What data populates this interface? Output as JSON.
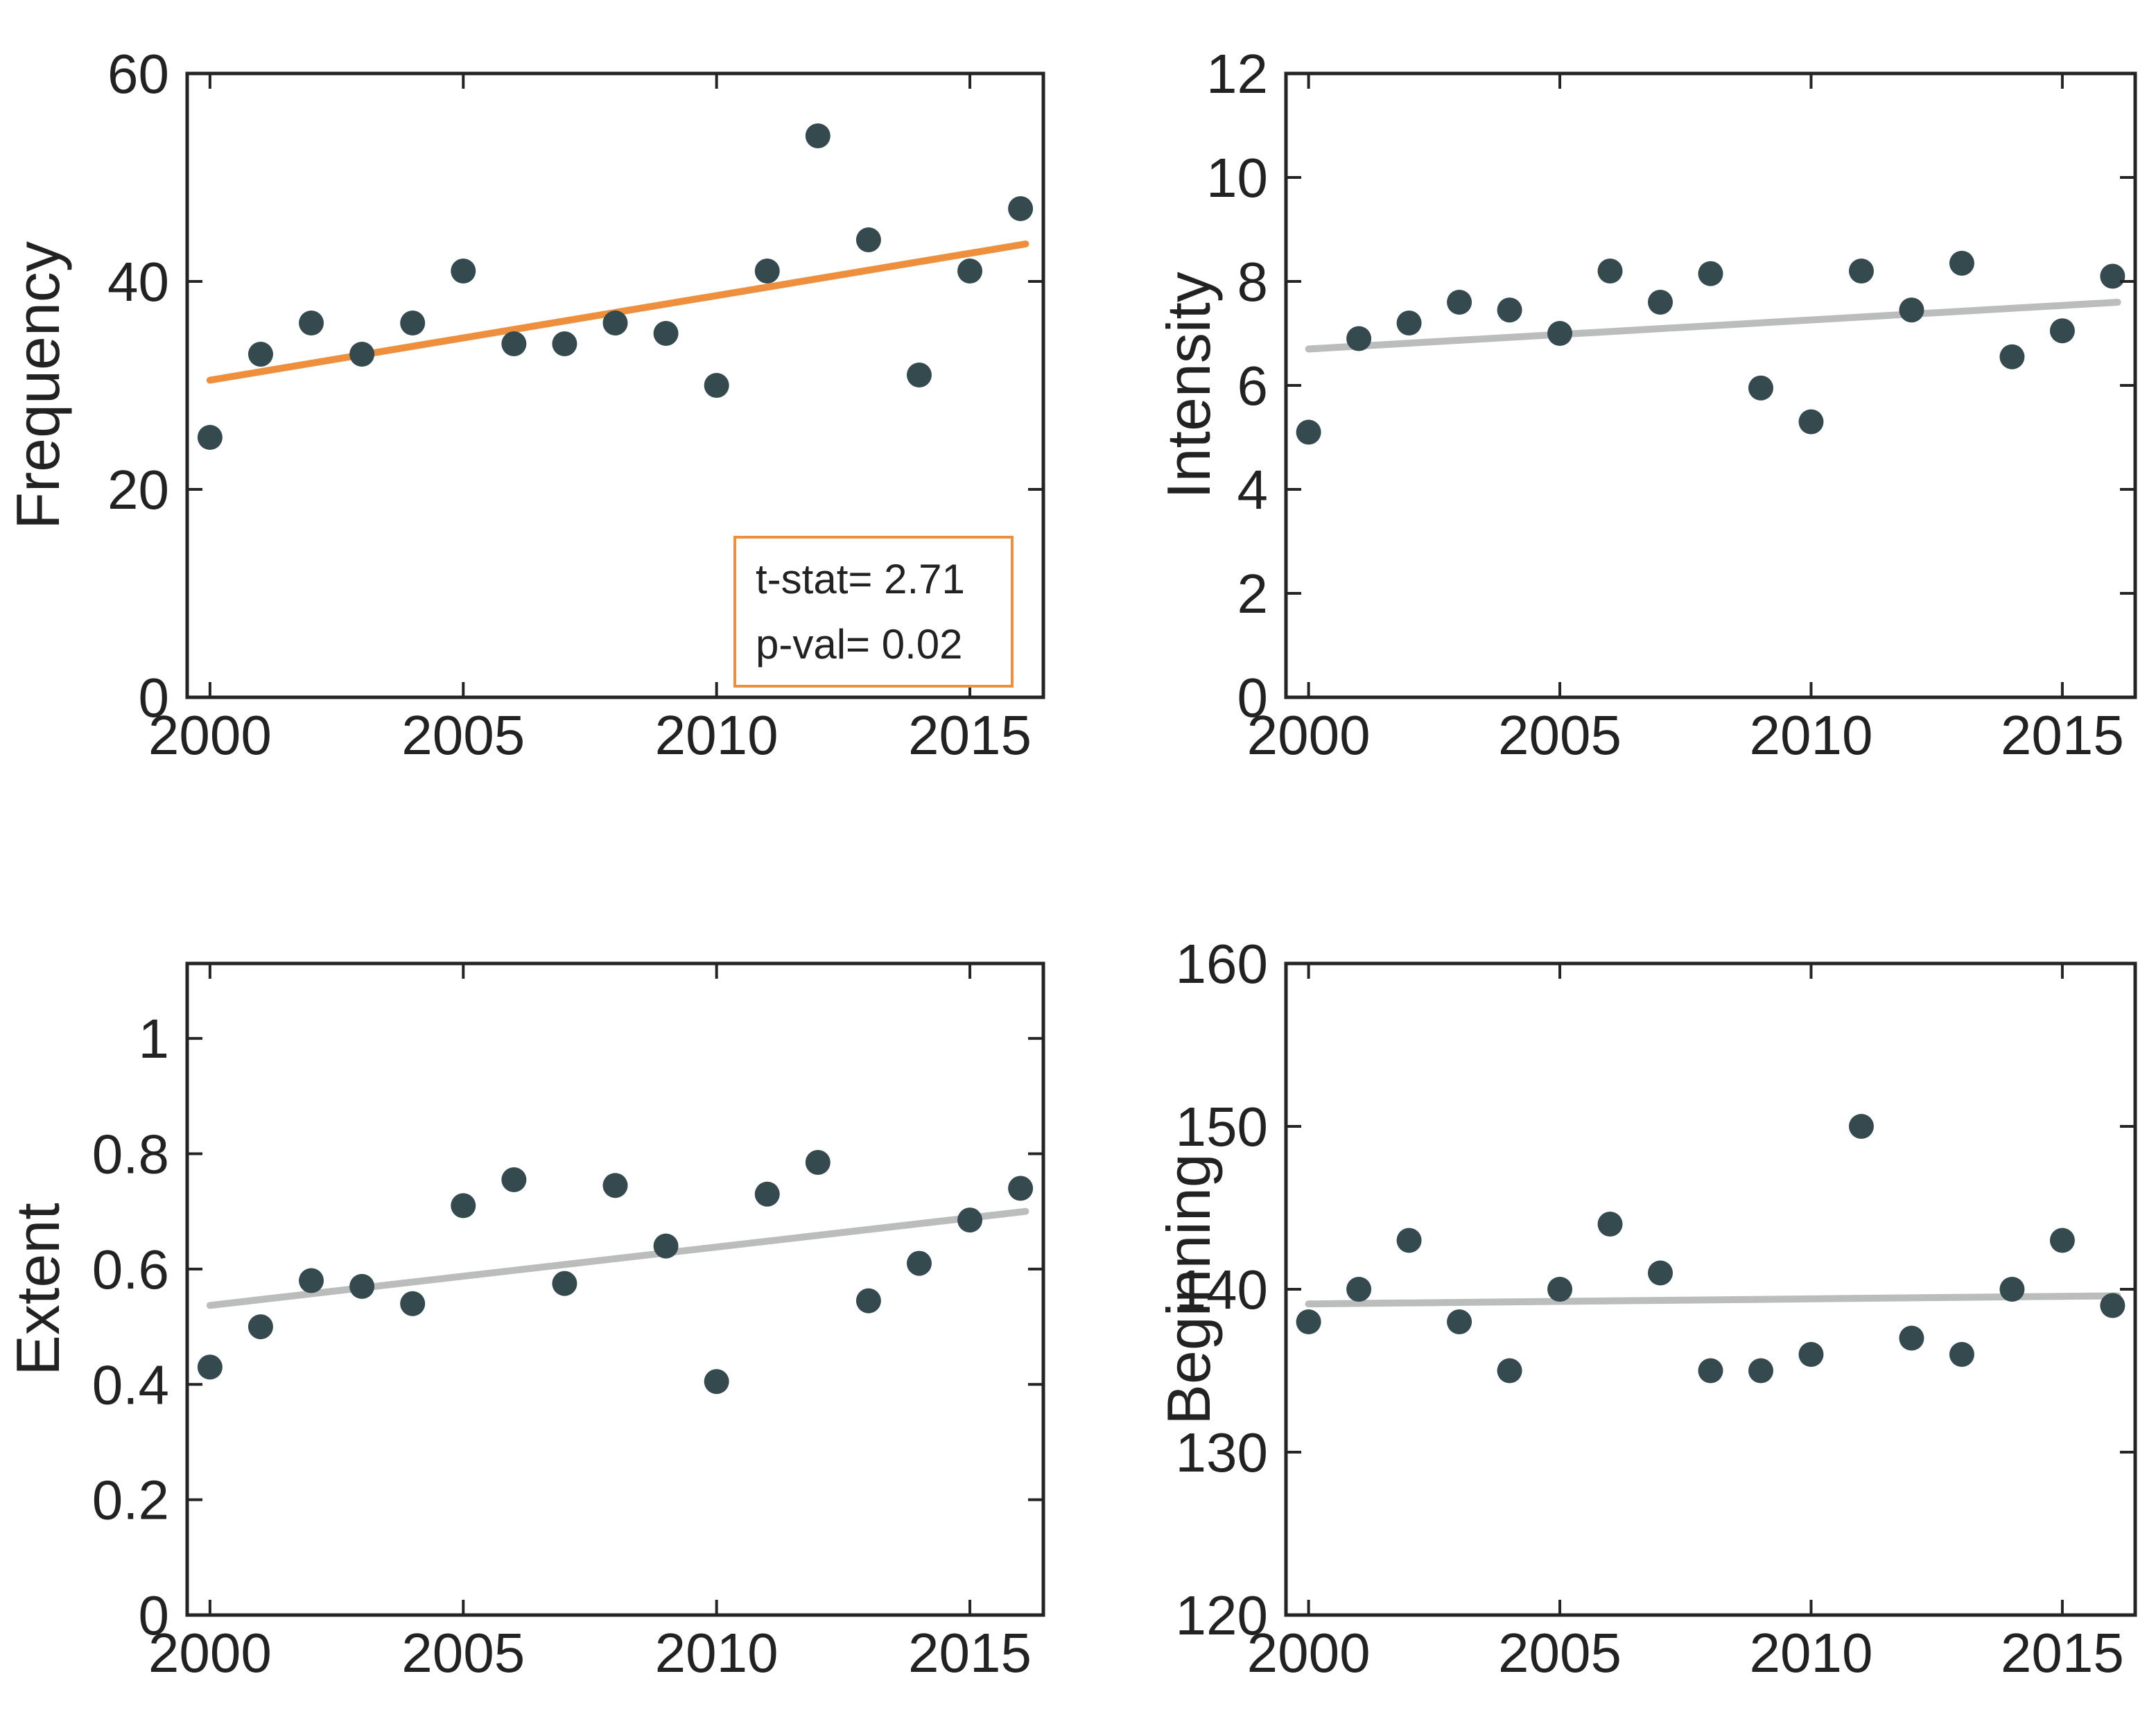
{
  "figure_title": "",
  "colors": {
    "background": "#ffffff",
    "dot": "#344a4e",
    "axis": "#242424",
    "text": "#222222",
    "trend_orange": "#ed8f3c",
    "trend_gray": "#bbbdbd"
  },
  "chart_data": [
    {
      "type": "scatter",
      "ylabel": "Frequency",
      "xlabel": "",
      "x": [
        2000,
        2001,
        2002,
        2003,
        2004,
        2005,
        2006,
        2007,
        2008,
        2009,
        2010,
        2011,
        2012,
        2013,
        2014,
        2015,
        2016
      ],
      "values": [
        25,
        33,
        36,
        33,
        36,
        41,
        34,
        34,
        36,
        35,
        30,
        41,
        54,
        44,
        31,
        41,
        47
      ],
      "xlim": [
        1999.55,
        2016.45
      ],
      "ylim": [
        0,
        60
      ],
      "xticks": [
        2000,
        2005,
        2010,
        2015
      ],
      "yticks": [
        0,
        20,
        40,
        60
      ],
      "grid": "off",
      "trend": {
        "x": [
          2000,
          2016.1
        ],
        "y": [
          30.5,
          43.6
        ],
        "color_key": "trend_orange"
      },
      "annotation": {
        "lines": [
          "t-stat= 2.71",
          "p-val= 0.02"
        ],
        "border_color_key": "trend_orange"
      }
    },
    {
      "type": "scatter",
      "ylabel": "Intensity",
      "xlabel": "",
      "x": [
        2000,
        2001,
        2002,
        2003,
        2004,
        2005,
        2006,
        2007,
        2008,
        2009,
        2010,
        2011,
        2012,
        2013,
        2014,
        2015,
        2016
      ],
      "values": [
        5.1,
        6.9,
        7.2,
        7.6,
        7.45,
        7.0,
        8.2,
        7.6,
        8.15,
        5.95,
        5.3,
        8.2,
        7.45,
        8.35,
        6.55,
        7.05,
        8.1
      ],
      "xlim": [
        1999.55,
        2016.45
      ],
      "ylim": [
        0,
        12
      ],
      "xticks": [
        2000,
        2005,
        2010,
        2015
      ],
      "yticks": [
        0,
        2,
        4,
        6,
        8,
        10,
        12
      ],
      "grid": "off",
      "trend": {
        "x": [
          2000,
          2016.1
        ],
        "y": [
          6.7,
          7.6
        ],
        "color_key": "trend_gray"
      }
    },
    {
      "type": "scatter",
      "ylabel": "Extent",
      "xlabel": "",
      "x": [
        2000,
        2001,
        2002,
        2003,
        2004,
        2005,
        2006,
        2007,
        2008,
        2009,
        2010,
        2011,
        2012,
        2013,
        2014,
        2015,
        2016
      ],
      "values": [
        0.43,
        0.5,
        0.58,
        0.57,
        0.54,
        0.71,
        0.755,
        0.575,
        0.745,
        0.64,
        0.405,
        0.73,
        0.785,
        0.545,
        0.61,
        0.685,
        0.74
      ],
      "xlim": [
        1999.55,
        2016.45
      ],
      "ylim": [
        0,
        1.13
      ],
      "xticks": [
        2000,
        2005,
        2010,
        2015
      ],
      "yticks": [
        0,
        0.2,
        0.4,
        0.6,
        0.8,
        1
      ],
      "grid": "off",
      "trend": {
        "x": [
          2000,
          2016.1
        ],
        "y": [
          0.537,
          0.7
        ],
        "color_key": "trend_gray"
      }
    },
    {
      "type": "scatter",
      "ylabel": "Beginning",
      "xlabel": "",
      "x": [
        2000,
        2001,
        2002,
        2003,
        2004,
        2005,
        2006,
        2007,
        2008,
        2009,
        2010,
        2011,
        2012,
        2013,
        2014,
        2015,
        2016
      ],
      "values": [
        138,
        140,
        143,
        138,
        135,
        140,
        144,
        141,
        135,
        135,
        136,
        150,
        137,
        136,
        140,
        143,
        139
      ],
      "xlim": [
        1999.55,
        2016.45
      ],
      "ylim": [
        120,
        160
      ],
      "xticks": [
        2000,
        2005,
        2010,
        2015
      ],
      "yticks": [
        120,
        130,
        140,
        150,
        160
      ],
      "grid": "off",
      "trend": {
        "x": [
          2000,
          2016.1
        ],
        "y": [
          139.1,
          139.6
        ],
        "color_key": "trend_gray"
      }
    }
  ]
}
